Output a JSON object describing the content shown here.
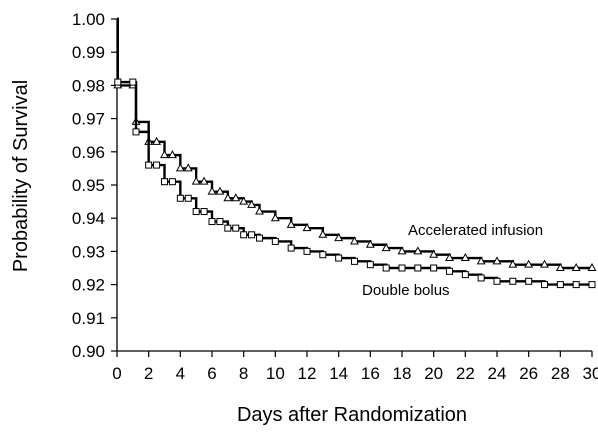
{
  "chart_data": {
    "type": "line",
    "title": "",
    "xlabel": "Days after Randomization",
    "ylabel": "Probability of Survival",
    "xlim": [
      0,
      30
    ],
    "ylim": [
      0.9,
      1.0
    ],
    "x_ticks": [
      0,
      2,
      4,
      6,
      8,
      10,
      12,
      14,
      16,
      18,
      20,
      22,
      24,
      26,
      28,
      30
    ],
    "y_ticks": [
      "0.90",
      "0.91",
      "0.92",
      "0.93",
      "0.94",
      "0.95",
      "0.96",
      "0.97",
      "0.98",
      "0.99",
      "1.00"
    ],
    "grid": false,
    "legend": "none",
    "series": [
      {
        "name": "Accelerated infusion",
        "marker": "triangle",
        "color": "#000000",
        "x": [
          0,
          0.05,
          1,
          1.2,
          2,
          2.5,
          3,
          3.5,
          4,
          4.5,
          5,
          5.5,
          6,
          6.5,
          7,
          7.5,
          8,
          8.5,
          9,
          10,
          11,
          12,
          13,
          14,
          15,
          16,
          17,
          18,
          19,
          20,
          21,
          22,
          23,
          24,
          25,
          26,
          27,
          28,
          29,
          30
        ],
        "y": [
          1.0,
          0.98,
          0.98,
          0.969,
          0.963,
          0.963,
          0.959,
          0.959,
          0.955,
          0.955,
          0.951,
          0.951,
          0.948,
          0.948,
          0.946,
          0.946,
          0.945,
          0.944,
          0.942,
          0.94,
          0.938,
          0.937,
          0.935,
          0.934,
          0.933,
          0.932,
          0.931,
          0.93,
          0.93,
          0.929,
          0.928,
          0.928,
          0.927,
          0.927,
          0.926,
          0.926,
          0.926,
          0.925,
          0.925,
          0.925
        ]
      },
      {
        "name": "Double bolus",
        "marker": "square",
        "color": "#000000",
        "x": [
          0,
          0.05,
          1,
          1.2,
          2,
          2.5,
          3,
          3.5,
          4,
          4.5,
          5,
          5.5,
          6,
          6.5,
          7,
          7.5,
          8,
          8.5,
          9,
          10,
          11,
          12,
          13,
          14,
          15,
          16,
          17,
          18,
          19,
          20,
          21,
          22,
          23,
          24,
          25,
          26,
          27,
          28,
          29,
          30
        ],
        "y": [
          1.0,
          0.981,
          0.981,
          0.966,
          0.956,
          0.956,
          0.951,
          0.951,
          0.946,
          0.946,
          0.942,
          0.942,
          0.939,
          0.939,
          0.937,
          0.937,
          0.935,
          0.935,
          0.934,
          0.933,
          0.931,
          0.93,
          0.929,
          0.928,
          0.927,
          0.926,
          0.925,
          0.925,
          0.925,
          0.925,
          0.924,
          0.923,
          0.922,
          0.921,
          0.921,
          0.921,
          0.92,
          0.92,
          0.92,
          0.92
        ]
      }
    ],
    "annotations": [
      {
        "text": "Accelerated infusion",
        "series": "Accelerated infusion"
      },
      {
        "text": "Double bolus",
        "series": "Double bolus"
      }
    ]
  }
}
